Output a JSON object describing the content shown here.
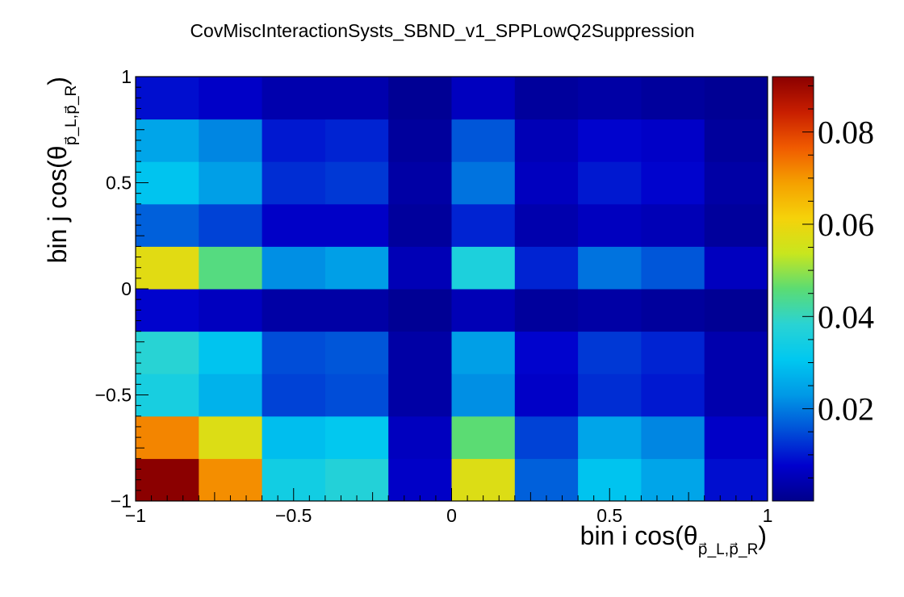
{
  "chart_data": {
    "type": "heatmap",
    "title": "CovMiscInteractionSysts_SBND_v1_SPPLowQ2Suppression",
    "xlabel": "bin i cos(θ",
    "xlabel_sub": "p⃗_L,p⃗_R",
    "xlabel_close": ")",
    "ylabel": "bin j cos(θ",
    "ylabel_sub": "p⃗_L,p⃗_R",
    "ylabel_close": ")",
    "xlim": [
      -1,
      1
    ],
    "ylim": [
      -1,
      1
    ],
    "x_ticks": [
      "−1",
      "−0.5",
      "0",
      "0.5",
      "1"
    ],
    "x_tick_values": [
      -1,
      -0.5,
      0,
      0.5,
      1
    ],
    "y_ticks": [
      "−1",
      "−0.5",
      "0",
      "0.5",
      "1"
    ],
    "y_tick_values": [
      -1,
      -0.5,
      0,
      0.5,
      1
    ],
    "zlim": [
      0,
      0.092
    ],
    "colorbar_ticks": [
      "0.02",
      "0.04",
      "0.06",
      "0.08"
    ],
    "colorbar_tick_values": [
      0.02,
      0.04,
      0.06,
      0.08
    ],
    "colorscale": [
      "#00008b",
      "#0000cd",
      "#0050d8",
      "#0099e6",
      "#00c8f0",
      "#2ad3d3",
      "#5bdc73",
      "#c8e61e",
      "#f5d20a",
      "#f5a000",
      "#f05a00",
      "#c81e00",
      "#8b0000"
    ],
    "x_bin_edges": [
      -1,
      -0.8,
      -0.6,
      -0.4,
      -0.2,
      0,
      0.2,
      0.4,
      0.6,
      0.8,
      1
    ],
    "y_bin_edges": [
      -1,
      -0.8,
      -0.6,
      -0.4,
      -0.2,
      0,
      0.2,
      0.4,
      0.6,
      0.8,
      1
    ],
    "grid": false,
    "legend": "colorbar-right",
    "values": [
      [
        0.092,
        0.071,
        0.034,
        0.037,
        0.007,
        0.057,
        0.017,
        0.03,
        0.025,
        0.009
      ],
      [
        0.072,
        0.057,
        0.029,
        0.031,
        0.006,
        0.046,
        0.014,
        0.025,
        0.021,
        0.007
      ],
      [
        0.035,
        0.027,
        0.014,
        0.015,
        0.003,
        0.022,
        0.007,
        0.012,
        0.01,
        0.004
      ],
      [
        0.038,
        0.03,
        0.015,
        0.016,
        0.003,
        0.024,
        0.008,
        0.013,
        0.011,
        0.004
      ],
      [
        0.008,
        0.006,
        0.003,
        0.003,
        0.001,
        0.005,
        0.002,
        0.003,
        0.002,
        0.001
      ],
      [
        0.058,
        0.045,
        0.022,
        0.024,
        0.005,
        0.036,
        0.011,
        0.019,
        0.016,
        0.006
      ],
      [
        0.017,
        0.014,
        0.007,
        0.007,
        0.002,
        0.011,
        0.004,
        0.006,
        0.005,
        0.002
      ],
      [
        0.03,
        0.024,
        0.012,
        0.013,
        0.003,
        0.019,
        0.006,
        0.01,
        0.008,
        0.003
      ],
      [
        0.025,
        0.021,
        0.01,
        0.011,
        0.002,
        0.016,
        0.005,
        0.008,
        0.007,
        0.002
      ],
      [
        0.009,
        0.007,
        0.004,
        0.004,
        0.001,
        0.006,
        0.002,
        0.003,
        0.002,
        0.001
      ]
    ]
  }
}
